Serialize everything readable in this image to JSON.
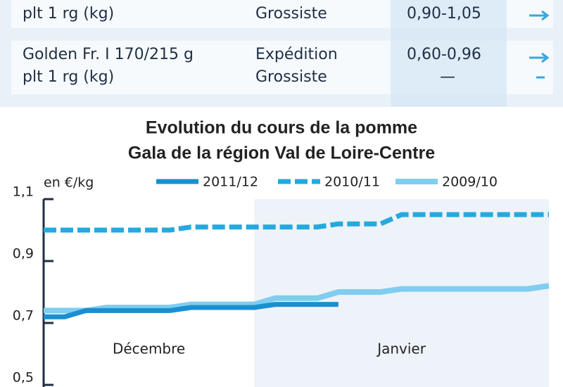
{
  "table": {
    "rows": [
      [
        [
          "plt 1 rg (kg)"
        ],
        [
          "Grossiste"
        ],
        [
          "0,90-1,05"
        ]
      ],
      [
        [
          "Golden Fr. I 170/215 g",
          "plt 1 rg (kg)"
        ],
        [
          "Expédition",
          "Grossiste"
        ],
        [
          "0,60-0,96",
          "—"
        ]
      ]
    ]
  },
  "chart_data": {
    "type": "line",
    "title": [
      "Evolution du cours de la pomme",
      "Gala de la région Val de Loire-Centre"
    ],
    "y_label": "en €/kg",
    "x": [
      0,
      1,
      2,
      3,
      4,
      5,
      6,
      7,
      8,
      9,
      10,
      11,
      12,
      13,
      14,
      15,
      16,
      17,
      18,
      19,
      20,
      21,
      22,
      23,
      24
    ],
    "xlim": [
      0,
      24
    ],
    "months": [
      {
        "label": "Décembre",
        "start": 0,
        "end": 10
      },
      {
        "label": "Janvier",
        "start": 10,
        "end": 24
      }
    ],
    "series": [
      {
        "name": "2011/12",
        "color": "#1a8fd0",
        "style": "solid",
        "width": 7,
        "values": [
          0.72,
          0.72,
          0.74,
          0.74,
          0.74,
          0.74,
          0.74,
          0.75,
          0.75,
          0.75,
          0.75,
          0.76,
          0.76,
          0.76,
          0.76,
          null,
          null,
          null,
          null,
          null,
          null,
          null,
          null,
          null,
          null
        ]
      },
      {
        "name": "2010/11",
        "color": "#25a9de",
        "style": "dashed",
        "width": 7,
        "values": [
          1.0,
          1.0,
          1.0,
          1.0,
          1.0,
          1.0,
          1.0,
          1.01,
          1.01,
          1.01,
          1.01,
          1.01,
          1.01,
          1.01,
          1.02,
          1.02,
          1.02,
          1.05,
          1.05,
          1.05,
          1.05,
          1.05,
          1.05,
          1.05,
          1.05
        ]
      },
      {
        "name": "2009/10",
        "color": "#7fcdf0",
        "style": "solid",
        "width": 8,
        "values": [
          0.74,
          0.74,
          0.74,
          0.75,
          0.75,
          0.75,
          0.75,
          0.76,
          0.76,
          0.76,
          0.76,
          0.78,
          0.78,
          0.78,
          0.8,
          0.8,
          0.8,
          0.81,
          0.81,
          0.81,
          0.81,
          0.81,
          0.81,
          0.81,
          0.82
        ]
      }
    ],
    "ylim": [
      0.5,
      1.1
    ],
    "yticks": [
      {
        "value": 0.5,
        "label": "0,5"
      },
      {
        "value": 0.7,
        "label": "0,7"
      },
      {
        "value": 0.9,
        "label": "0,9"
      },
      {
        "value": 1.1,
        "label": "1,1"
      }
    ]
  }
}
